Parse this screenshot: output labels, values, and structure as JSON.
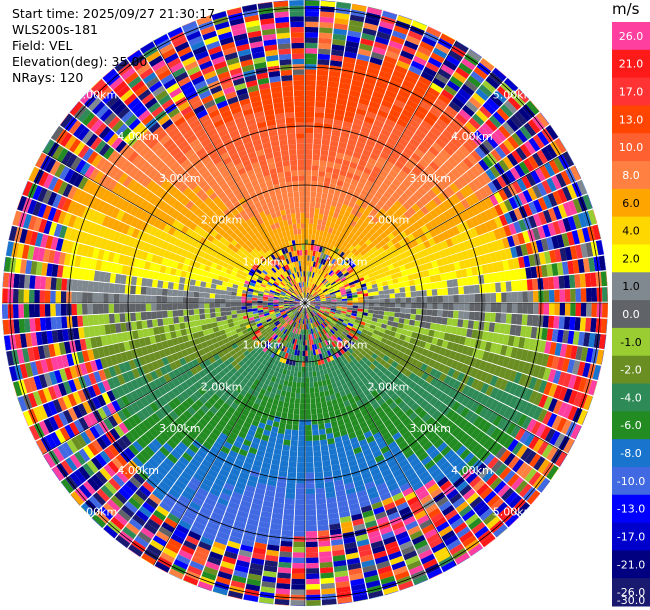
{
  "header": {
    "start_time": "Start time: 2025/09/27 21:30:17",
    "instrument": "WLS200s-181",
    "field": "Field: VEL",
    "elevation": "Elevation(deg): 35.00",
    "nrays": "NRays: 120"
  },
  "chart_data": {
    "type": "heatmap",
    "subtype": "ppi-polar",
    "field": "VEL",
    "units": "m/s",
    "n_rays": 120,
    "elevation_deg": 35.0,
    "range_rings_km": [
      1,
      2,
      3,
      4,
      5
    ],
    "range_ring_labels": [
      "1.00km",
      "2.00km",
      "3.00km",
      "4.00km",
      "5.00km"
    ],
    "max_range_km": 5.0,
    "colorbar": {
      "title": "m/s",
      "tick_labels": [
        "26.0",
        "21.0",
        "17.0",
        "13.0",
        "10.0",
        "8.0",
        "6.0",
        "4.0",
        "2.0",
        "1.0",
        "0.0",
        "-1.0",
        "-2.0",
        "-4.0",
        "-6.0",
        "-8.0",
        "-10.0",
        "-13.0",
        "-17.0",
        "-21.0",
        "-26.0",
        "-30.0"
      ],
      "colors": [
        "#ff3fa0",
        "#ff1a1a",
        "#ff3333",
        "#ff4500",
        "#ff6030",
        "#ff8040",
        "#ffa500",
        "#ffd700",
        "#ffff00",
        "#808890",
        "#606468",
        "#9acd32",
        "#6b8e23",
        "#2e8b57",
        "#228b22",
        "#1874cd",
        "#4169e1",
        "#0000ff",
        "#0000cd",
        "#000080",
        "#191970"
      ]
    },
    "sector_pattern_note": "north: positive (yellow to red), south: negative (green to blue), noise beyond ~4km"
  },
  "colors": {
    "background": "#ffffff",
    "rings": "#000000"
  }
}
